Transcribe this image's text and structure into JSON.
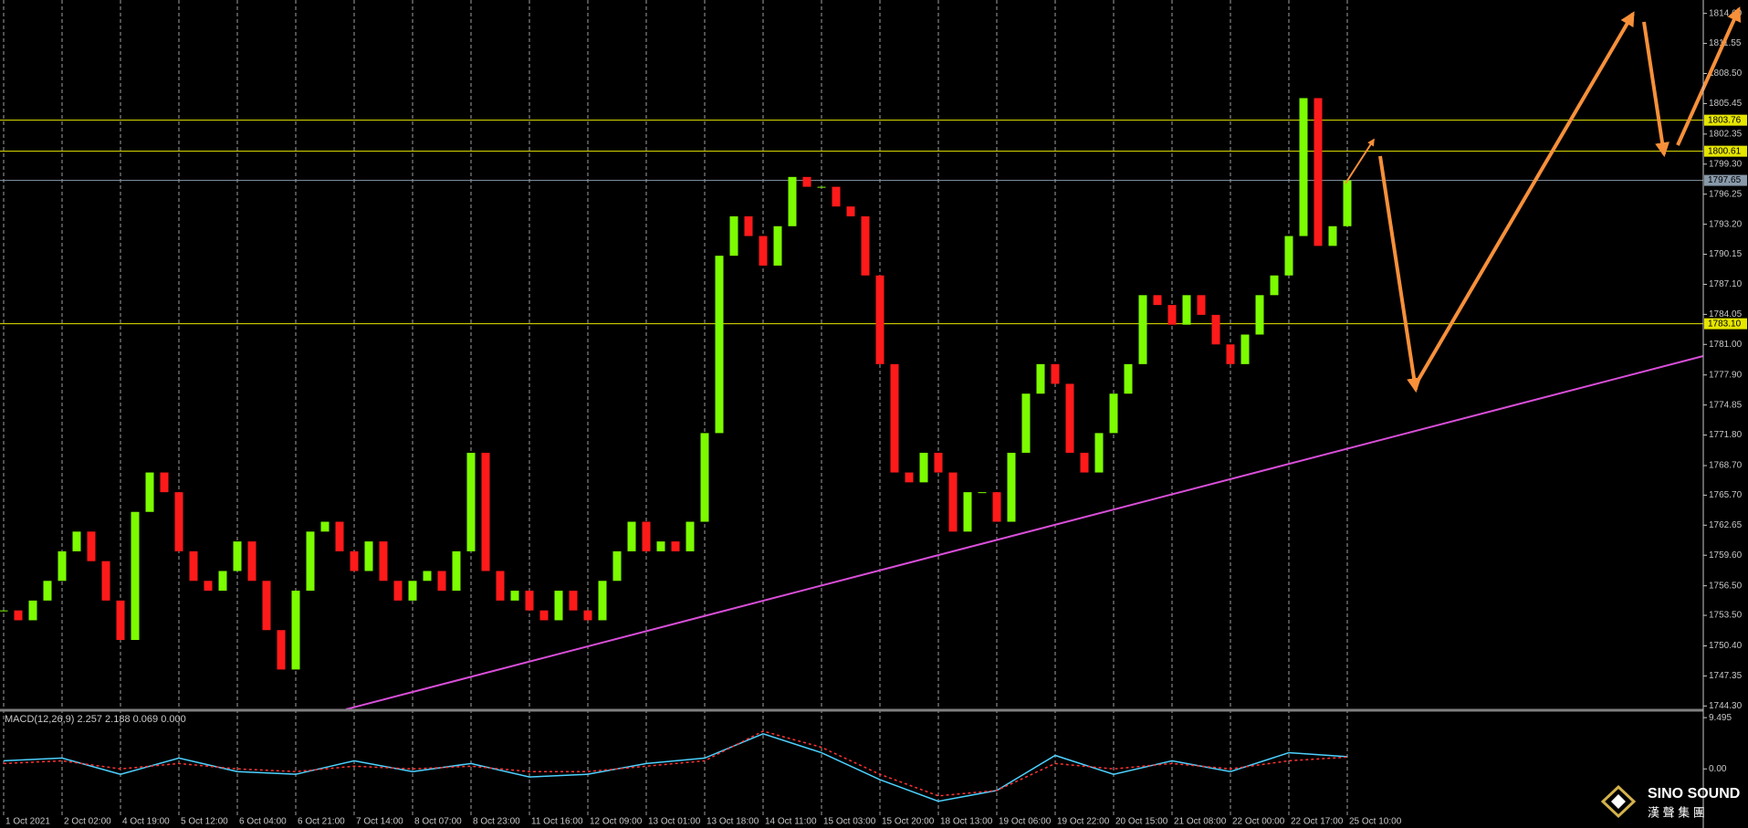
{
  "chart_data": {
    "type": "candlestick",
    "categories": [
      "1 Oct 2021",
      null,
      null,
      null,
      "2 Oct 02:00",
      null,
      null,
      null,
      "4 Oct 19:00",
      null,
      null,
      null,
      "5 Oct 12:00",
      null,
      null,
      null,
      "6 Oct 04:00",
      null,
      null,
      null,
      "6 Oct 21:00",
      null,
      null,
      null,
      "7 Oct 14:00",
      null,
      null,
      null,
      "8 Oct 07:00",
      null,
      null,
      null,
      "8 Oct 23:00",
      null,
      null,
      null,
      "11 Oct 16:00",
      null,
      null,
      null,
      "12 Oct 09:00",
      null,
      null,
      null,
      "13 Oct 01:00",
      null,
      null,
      null,
      "13 Oct 18:00",
      null,
      null,
      null,
      "14 Oct 11:00",
      null,
      null,
      null,
      "15 Oct 03:00",
      null,
      null,
      null,
      "15 Oct 20:00",
      null,
      null,
      null,
      "18 Oct 13:00",
      null,
      null,
      null,
      "19 Oct 06:00",
      null,
      null,
      null,
      "19 Oct 22:00",
      null,
      null,
      null,
      "20 Oct 15:00",
      null,
      null,
      null,
      "21 Oct 08:00",
      null,
      null,
      null,
      "22 Oct 00:00",
      null,
      null,
      null,
      "22 Oct 17:00",
      null,
      null,
      null,
      "25 Oct 10:00"
    ],
    "values": [
      1754,
      1753,
      1755,
      1757,
      1760,
      1762,
      1759,
      1755,
      1751,
      1764,
      1768,
      1766,
      1760,
      1757,
      1756,
      1758,
      1761,
      1757,
      1752,
      1748,
      1756,
      1762,
      1763,
      1760,
      1758,
      1761,
      1757,
      1755,
      1757,
      1758,
      1756,
      1760,
      1770,
      1758,
      1755,
      1756,
      1754,
      1753,
      1756,
      1754,
      1753,
      1757,
      1760,
      1763,
      1760,
      1761,
      1760,
      1763,
      1772,
      1790,
      1794,
      1792,
      1789,
      1793,
      1798,
      1797,
      1797,
      1795,
      1794,
      1788,
      1779,
      1768,
      1767,
      1770,
      1768,
      1762,
      1766,
      1766,
      1763,
      1770,
      1776,
      1779,
      1777,
      1770,
      1768,
      1772,
      1776,
      1779,
      1786,
      1785,
      1783,
      1786,
      1784,
      1781,
      1779,
      1782,
      1786,
      1788,
      1792,
      1806,
      1791,
      1793,
      1797.65
    ],
    "up_color": "#7cfc00",
    "down_color": "#ff1a1a",
    "ylim": [
      1743.96,
      1815.96
    ],
    "yticks": [
      {
        "value": 1814.6,
        "label": "1814.60"
      },
      1811.55,
      {
        "value": 1808.5,
        "label": "1808.50"
      },
      1805.45,
      1802.35,
      {
        "value": 1799.3,
        "label": "1799.30"
      },
      1796.25,
      {
        "value": 1793.2,
        "label": "1793.20"
      },
      1790.15,
      {
        "value": 1787.1,
        "label": "1787.10"
      },
      1784.05,
      {
        "value": 1781,
        "label": "1781.00"
      },
      {
        "value": 1777.9,
        "label": "1777.90"
      },
      1774.85,
      {
        "value": 1771.8,
        "label": "1771.80"
      },
      {
        "value": 1768.7,
        "label": "1768.70"
      },
      {
        "value": 1765.7,
        "label": "1765.70"
      },
      1762.65,
      {
        "value": 1759.6,
        "label": "1759.60"
      },
      {
        "value": 1756.5,
        "label": "1756.50"
      },
      {
        "value": 1753.5,
        "label": "1753.50"
      },
      {
        "value": 1750.4,
        "label": "1750.40"
      },
      1747.35,
      {
        "value": 1744.3,
        "label": "1744.30"
      }
    ],
    "grid": true,
    "levels": [
      1803.76,
      1800.61,
      1797.65,
      {
        "value": 1783.1,
        "label": "1783.10"
      }
    ],
    "level_colors": [
      "#e6e600",
      "#e6e600",
      "#8899aa",
      "#e6e600"
    ],
    "indicator": {
      "type": "line",
      "label": "MACD(12,26,9) 2.257 2.188 0.069 0.000",
      "ylim": [
        -10.95,
        10.53
      ],
      "yticks": [
        9.495,
        {
          "value": 0,
          "label": "0.00"
        }
      ],
      "series": [
        {
          "color": "#4dd2ff",
          "values": [
            1.5,
            2,
            -1,
            2,
            -0.5,
            -1,
            1.5,
            -0.5,
            1,
            -1.5,
            -1,
            1,
            2,
            6.5,
            3,
            -2,
            -6,
            -4,
            2.5,
            -1,
            1.5,
            -0.5,
            3,
            2.257
          ]
        },
        {
          "color": "#ff3333",
          "style": "dashed",
          "values": [
            1,
            1.5,
            0,
            1,
            0,
            -0.5,
            0.5,
            0,
            0.5,
            -0.5,
            -0.5,
            0.5,
            1.5,
            7,
            4,
            -1,
            -5,
            -4,
            1,
            0,
            1,
            0,
            1.5,
            2.188
          ]
        }
      ]
    }
  },
  "logo": {
    "name": "SINO SOUND",
    "subtitle": "漢 聲 集 團"
  }
}
